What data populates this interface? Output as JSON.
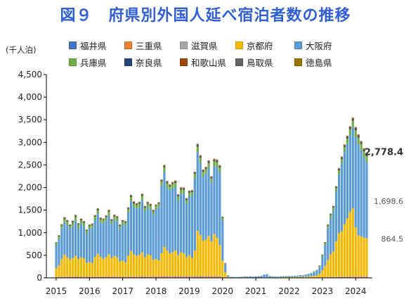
{
  "title": "図９　府県別外国人延べ宿泊者数の推移",
  "unit_label": "(千人泊)",
  "colors": {
    "fukui": "#4472c4",
    "mie": "#ed7d31",
    "shiga": "#a5a5a5",
    "kyoto": "#f5b800",
    "osaka": "#5b9bd5",
    "hyogo": "#70ad47",
    "nara": "#264478",
    "wakayama": "#9e480e",
    "tottori": "#636363",
    "tokushima": "#997300"
  },
  "chart_data": {
    "type": "bar",
    "stacked": true,
    "title": "図９　府県別外国人延べ宿泊者数の推移",
    "ylabel": "(千人泊)",
    "ylim": [
      0,
      4500
    ],
    "yticks": [
      0,
      500,
      1000,
      1500,
      2000,
      2500,
      3000,
      3500,
      4000,
      4500
    ],
    "ytick_labels": [
      "0",
      "500",
      "1,000",
      "1,500",
      "2,000",
      "2,500",
      "3,000",
      "3,500",
      "4,000",
      "4,500"
    ],
    "xtick_labels": [
      "2015",
      "2016",
      "2017",
      "2018",
      "2019",
      "2020",
      "2021",
      "2022",
      "2023",
      "2024"
    ],
    "months": 113,
    "start": "2015-01",
    "end": "2024-05",
    "grid": false,
    "legend_position": "top",
    "legend": [
      "福井県",
      "三重県",
      "滋賀県",
      "京都府",
      "大阪府",
      "兵庫県",
      "奈良県",
      "和歌山県",
      "鳥取県",
      "徳島県"
    ],
    "series": [
      {
        "name": "福井県",
        "key": "fukui",
        "values": [
          3,
          3,
          4,
          4,
          4,
          3,
          4,
          4,
          3,
          4,
          3,
          3,
          3,
          3,
          4,
          4,
          4,
          4,
          5,
          5,
          4,
          4,
          4,
          4,
          4,
          4,
          5,
          5,
          5,
          5,
          5,
          5,
          5,
          5,
          5,
          5,
          5,
          5,
          6,
          6,
          6,
          6,
          6,
          6,
          6,
          6,
          6,
          6,
          5,
          5,
          6,
          6,
          6,
          6,
          6,
          6,
          6,
          6,
          6,
          6,
          3,
          3,
          1,
          0,
          0,
          0,
          0,
          0,
          0,
          0,
          0,
          0,
          0,
          0,
          0,
          0,
          0,
          0,
          0,
          0,
          0,
          0,
          0,
          0,
          0,
          0,
          0,
          0,
          0,
          0,
          0,
          0,
          0,
          0,
          0,
          0,
          1,
          1,
          1,
          2,
          3,
          3,
          4,
          4,
          5,
          5,
          5,
          5,
          5,
          5,
          5,
          5,
          5
        ]
      },
      {
        "name": "三重県",
        "key": "mie",
        "values": [
          15,
          16,
          18,
          18,
          20,
          18,
          22,
          24,
          20,
          22,
          18,
          18,
          18,
          18,
          20,
          20,
          22,
          20,
          22,
          24,
          20,
          22,
          20,
          20,
          20,
          20,
          22,
          22,
          24,
          22,
          24,
          26,
          22,
          24,
          22,
          22,
          22,
          22,
          26,
          26,
          26,
          24,
          26,
          28,
          24,
          26,
          24,
          24,
          24,
          24,
          26,
          26,
          28,
          26,
          28,
          30,
          26,
          28,
          24,
          26,
          12,
          8,
          3,
          2,
          2,
          2,
          2,
          2,
          2,
          2,
          2,
          2,
          2,
          2,
          2,
          2,
          2,
          2,
          2,
          2,
          2,
          2,
          2,
          2,
          2,
          2,
          2,
          2,
          2,
          2,
          2,
          2,
          3,
          3,
          3,
          4,
          5,
          6,
          10,
          14,
          15,
          16,
          18,
          18,
          20,
          20,
          22,
          22,
          22,
          22,
          24,
          24,
          24
        ]
      },
      {
        "name": "滋賀県",
        "key": "shiga",
        "values": [
          8,
          8,
          9,
          10,
          10,
          9,
          11,
          12,
          10,
          11,
          9,
          9,
          9,
          9,
          10,
          10,
          11,
          10,
          11,
          12,
          10,
          11,
          10,
          10,
          10,
          10,
          11,
          11,
          12,
          11,
          12,
          13,
          11,
          12,
          11,
          11,
          11,
          11,
          13,
          13,
          13,
          12,
          13,
          14,
          12,
          13,
          12,
          12,
          12,
          12,
          13,
          13,
          14,
          13,
          14,
          15,
          13,
          14,
          12,
          13,
          6,
          4,
          2,
          1,
          1,
          1,
          1,
          1,
          1,
          1,
          1,
          1,
          1,
          1,
          1,
          1,
          1,
          1,
          1,
          1,
          1,
          1,
          1,
          1,
          1,
          1,
          1,
          1,
          1,
          1,
          1,
          1,
          2,
          2,
          2,
          2,
          3,
          3,
          5,
          7,
          8,
          8,
          9,
          9,
          10,
          10,
          11,
          11,
          11,
          11,
          12,
          12,
          12
        ]
      },
      {
        "name": "京都府",
        "key": "kyoto",
        "values": [
          180,
          250,
          380,
          480,
          420,
          380,
          400,
          450,
          380,
          420,
          400,
          300,
          320,
          300,
          430,
          500,
          430,
          380,
          420,
          480,
          400,
          450,
          420,
          330,
          350,
          310,
          450,
          560,
          480,
          450,
          470,
          520,
          420,
          480,
          460,
          360,
          380,
          350,
          500,
          640,
          560,
          500,
          520,
          560,
          460,
          520,
          500,
          420,
          460,
          400,
          560,
          1000,
          900,
          780,
          800,
          880,
          760,
          920,
          850,
          680,
          360,
          110,
          15,
          5,
          5,
          4,
          5,
          6,
          7,
          5,
          5,
          4,
          4,
          4,
          5,
          6,
          7,
          6,
          8,
          7,
          6,
          8,
          10,
          12,
          12,
          12,
          14,
          16,
          20,
          18,
          22,
          25,
          30,
          40,
          50,
          80,
          160,
          260,
          380,
          500,
          560,
          780,
          960,
          1000,
          1150,
          1280,
          1420,
          1500,
          1080,
          900,
          880,
          850,
          835
        ]
      },
      {
        "name": "大阪府",
        "key": "osaka",
        "values": [
          520,
          590,
          680,
          720,
          720,
          680,
          720,
          780,
          700,
          740,
          720,
          650,
          740,
          780,
          820,
          880,
          760,
          800,
          820,
          860,
          760,
          800,
          800,
          720,
          800,
          820,
          960,
          1100,
          1050,
          1050,
          1050,
          1160,
          1020,
          1040,
          1020,
          1000,
          1100,
          1180,
          1500,
          1660,
          1400,
          1400,
          1420,
          1400,
          1220,
          1300,
          1320,
          1180,
          1300,
          1380,
          1600,
          1740,
          1600,
          1420,
          1460,
          1500,
          1300,
          1500,
          1560,
          1620,
          900,
          180,
          30,
          12,
          8,
          8,
          10,
          14,
          20,
          20,
          22,
          20,
          24,
          28,
          34,
          60,
          70,
          30,
          20,
          18,
          16,
          20,
          20,
          22,
          22,
          22,
          24,
          26,
          30,
          30,
          38,
          50,
          60,
          80,
          100,
          160,
          300,
          460,
          700,
          800,
          900,
          1100,
          1300,
          1500,
          1600,
          1650,
          1700,
          1800,
          2000,
          2020,
          1900,
          1780,
          1690
        ]
      },
      {
        "name": "兵庫県",
        "key": "hyogo",
        "values": [
          40,
          50,
          60,
          70,
          70,
          60,
          70,
          80,
          65,
          75,
          70,
          60,
          60,
          60,
          70,
          80,
          70,
          65,
          70,
          80,
          70,
          75,
          75,
          65,
          60,
          60,
          75,
          90,
          80,
          75,
          80,
          90,
          75,
          80,
          80,
          70,
          70,
          70,
          85,
          100,
          90,
          85,
          90,
          95,
          85,
          90,
          90,
          80,
          85,
          80,
          95,
          120,
          110,
          100,
          100,
          110,
          95,
          110,
          110,
          100,
          50,
          15,
          4,
          2,
          2,
          2,
          2,
          2,
          3,
          2,
          2,
          2,
          2,
          2,
          2,
          3,
          3,
          2,
          3,
          3,
          2,
          3,
          4,
          4,
          4,
          5,
          5,
          6,
          6,
          6,
          8,
          9,
          10,
          12,
          14,
          18,
          30,
          40,
          55,
          65,
          70,
          80,
          90,
          100,
          110,
          120,
          130,
          140,
          150,
          145,
          140,
          130,
          125
        ]
      },
      {
        "name": "奈良県",
        "key": "nara",
        "values": [
          8,
          9,
          11,
          13,
          12,
          10,
          12,
          14,
          11,
          13,
          12,
          10,
          10,
          10,
          12,
          14,
          12,
          11,
          12,
          14,
          12,
          13,
          13,
          11,
          11,
          11,
          13,
          16,
          14,
          13,
          14,
          16,
          13,
          14,
          14,
          12,
          12,
          12,
          15,
          18,
          16,
          15,
          16,
          17,
          15,
          16,
          16,
          14,
          15,
          14,
          17,
          21,
          19,
          17,
          17,
          19,
          16,
          19,
          19,
          17,
          8,
          3,
          1,
          0,
          0,
          0,
          0,
          0,
          0,
          0,
          0,
          0,
          0,
          0,
          0,
          0,
          0,
          0,
          0,
          0,
          0,
          0,
          0,
          0,
          0,
          0,
          0,
          0,
          1,
          1,
          1,
          1,
          2,
          2,
          3,
          3,
          5,
          7,
          10,
          12,
          13,
          15,
          17,
          19,
          20,
          22,
          23,
          24,
          25,
          25,
          24,
          24,
          23
        ]
      },
      {
        "name": "和歌山県",
        "key": "wakayama",
        "values": [
          10,
          12,
          14,
          16,
          15,
          13,
          15,
          18,
          14,
          16,
          15,
          13,
          13,
          13,
          15,
          18,
          15,
          14,
          15,
          18,
          15,
          16,
          16,
          14,
          14,
          14,
          16,
          20,
          18,
          16,
          17,
          20,
          16,
          18,
          17,
          15,
          15,
          15,
          19,
          22,
          20,
          18,
          20,
          21,
          19,
          20,
          20,
          18,
          18,
          18,
          21,
          26,
          24,
          21,
          21,
          24,
          20,
          24,
          24,
          21,
          10,
          4,
          1,
          1,
          1,
          1,
          1,
          1,
          1,
          1,
          1,
          1,
          1,
          1,
          1,
          1,
          1,
          1,
          1,
          1,
          1,
          1,
          1,
          1,
          1,
          1,
          1,
          1,
          1,
          1,
          2,
          2,
          2,
          3,
          4,
          5,
          7,
          9,
          13,
          16,
          17,
          19,
          21,
          23,
          25,
          27,
          28,
          30,
          31,
          31,
          30,
          29,
          28
        ]
      },
      {
        "name": "鳥取県",
        "key": "tottori",
        "values": [
          5,
          5,
          6,
          7,
          7,
          6,
          7,
          8,
          6,
          7,
          7,
          6,
          6,
          6,
          7,
          8,
          7,
          6,
          7,
          8,
          7,
          7,
          7,
          6,
          6,
          6,
          7,
          9,
          8,
          7,
          8,
          9,
          7,
          8,
          8,
          7,
          7,
          7,
          8,
          10,
          9,
          8,
          9,
          9,
          8,
          9,
          9,
          8,
          8,
          8,
          9,
          11,
          10,
          9,
          9,
          10,
          9,
          10,
          10,
          9,
          4,
          2,
          0,
          0,
          0,
          0,
          0,
          0,
          0,
          0,
          0,
          0,
          0,
          0,
          0,
          0,
          0,
          0,
          0,
          0,
          0,
          0,
          0,
          0,
          0,
          0,
          0,
          0,
          0,
          0,
          0,
          1,
          1,
          1,
          1,
          2,
          3,
          4,
          5,
          6,
          7,
          7,
          8,
          8,
          9,
          9,
          10,
          10,
          10,
          10,
          10,
          10,
          10
        ]
      },
      {
        "name": "徳島県",
        "key": "tokushima",
        "values": [
          3,
          3,
          4,
          4,
          4,
          4,
          4,
          5,
          4,
          4,
          4,
          3,
          3,
          3,
          4,
          5,
          4,
          4,
          4,
          5,
          4,
          4,
          4,
          4,
          4,
          4,
          4,
          5,
          5,
          4,
          5,
          5,
          4,
          5,
          5,
          4,
          4,
          4,
          5,
          6,
          5,
          5,
          5,
          6,
          5,
          5,
          5,
          5,
          5,
          5,
          5,
          6,
          6,
          5,
          5,
          6,
          5,
          6,
          6,
          5,
          2,
          1,
          0,
          0,
          0,
          0,
          0,
          0,
          0,
          0,
          0,
          0,
          0,
          0,
          0,
          0,
          0,
          0,
          0,
          0,
          0,
          0,
          0,
          0,
          0,
          0,
          0,
          0,
          0,
          0,
          0,
          0,
          0,
          1,
          1,
          1,
          2,
          2,
          3,
          3,
          4,
          4,
          4,
          5,
          5,
          5,
          6,
          6,
          6,
          6,
          6,
          6,
          6
        ]
      }
    ],
    "annotations": [
      {
        "text": "2,778.4",
        "value": 2778.4,
        "bold": true
      },
      {
        "text": "1,698.6",
        "value": 1698.6,
        "bold": false
      },
      {
        "text": "864.5",
        "value": 864.5,
        "bold": false
      }
    ]
  }
}
